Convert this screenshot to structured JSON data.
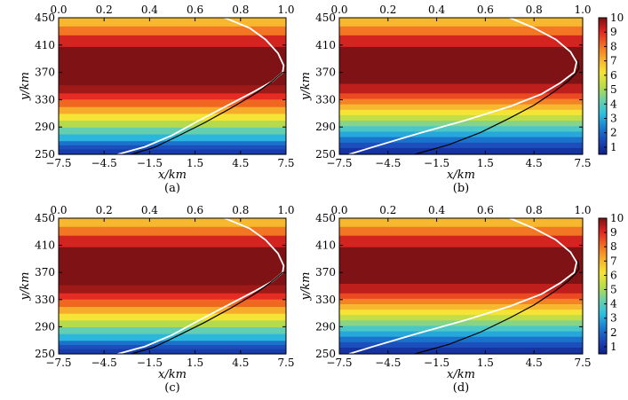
{
  "chart_data": [
    {
      "type": "heatmap",
      "panel_label": "(a)",
      "xlabel": "x/km",
      "ylabel": "y/km",
      "xlim": [
        -7.5,
        7.5
      ],
      "ylim": [
        250,
        450
      ],
      "x_ticks": [
        "−7.5",
        "−4.5",
        "−1.5",
        "1.5",
        "4.5",
        "7.5"
      ],
      "y_ticks": [
        "250",
        "290",
        "330",
        "370",
        "410",
        "450"
      ],
      "top_axis": {
        "lim": [
          0,
          1.0
        ],
        "ticks": [
          "0.0",
          "0.2",
          "0.4",
          "0.6",
          "0.8",
          "1.0"
        ]
      },
      "bands": [
        [
          250,
          258,
          1.2
        ],
        [
          258,
          264,
          1.6
        ],
        [
          264,
          270,
          2.2
        ],
        [
          270,
          280,
          3.2
        ],
        [
          280,
          290,
          4.2
        ],
        [
          290,
          300,
          5.2
        ],
        [
          300,
          310,
          6.2
        ],
        [
          310,
          320,
          7.2
        ],
        [
          320,
          331,
          8.2
        ],
        [
          331,
          340,
          9.0
        ],
        [
          340,
          352,
          9.7
        ],
        [
          352,
          408,
          10
        ],
        [
          408,
          425,
          9.2
        ],
        [
          425,
          438,
          8.0
        ],
        [
          438,
          450,
          7.0
        ]
      ],
      "curves": [
        {
          "color": "#ffffff",
          "points": [
            [
              0.26,
              250
            ],
            [
              0.38,
              261
            ],
            [
              0.5,
              278
            ],
            [
              0.62,
              300
            ],
            [
              0.74,
              321
            ],
            [
              0.86,
              342
            ],
            [
              0.94,
              357
            ],
            [
              0.985,
              370
            ],
            [
              0.99,
              380
            ],
            [
              0.965,
              398
            ],
            [
              0.91,
              418
            ],
            [
              0.84,
              435
            ],
            [
              0.73,
              450
            ]
          ]
        },
        {
          "color": "#000000",
          "points": [
            [
              0.32,
              250
            ],
            [
              0.42,
              260
            ],
            [
              0.52,
              276
            ],
            [
              0.64,
              296
            ],
            [
              0.76,
              318
            ],
            [
              0.87,
              340
            ],
            [
              0.94,
              357
            ],
            [
              0.985,
              370
            ]
          ]
        }
      ]
    },
    {
      "type": "heatmap",
      "panel_label": "(b)",
      "xlabel": "x/km",
      "ylabel": "y/km",
      "xlim": [
        -7.5,
        7.5
      ],
      "ylim": [
        250,
        450
      ],
      "x_ticks": [
        "−7.5",
        "−4.5",
        "−1.5",
        "1.5",
        "4.5",
        "7.5"
      ],
      "y_ticks": [
        "250",
        "290",
        "330",
        "370",
        "410",
        "450"
      ],
      "top_axis": {
        "lim": [
          0,
          1.0
        ],
        "ticks": [
          "0.0",
          "0.2",
          "0.4",
          "0.6",
          "0.8",
          "1.0"
        ]
      },
      "bands": [
        [
          250,
          260,
          1.0
        ],
        [
          260,
          268,
          1.6
        ],
        [
          268,
          276,
          2.2
        ],
        [
          276,
          284,
          3.0
        ],
        [
          284,
          292,
          3.8
        ],
        [
          292,
          300,
          4.6
        ],
        [
          300,
          308,
          5.4
        ],
        [
          308,
          316,
          6.2
        ],
        [
          316,
          324,
          7.0
        ],
        [
          324,
          332,
          7.8
        ],
        [
          332,
          340,
          8.6
        ],
        [
          340,
          354,
          9.4
        ],
        [
          354,
          408,
          10
        ],
        [
          408,
          425,
          9.2
        ],
        [
          425,
          438,
          8.0
        ],
        [
          438,
          450,
          7.0
        ]
      ],
      "colorbar": {
        "min": 0.5,
        "max": 10,
        "ticks": [
          "1",
          "2",
          "3",
          "4",
          "5",
          "6",
          "7",
          "8",
          "9",
          "10"
        ]
      },
      "curves": [
        {
          "color": "#ffffff",
          "points": [
            [
              0.04,
              250
            ],
            [
              0.15,
              262
            ],
            [
              0.32,
              280
            ],
            [
              0.52,
              300
            ],
            [
              0.7,
              320
            ],
            [
              0.83,
              338
            ],
            [
              0.91,
              355
            ],
            [
              0.965,
              370
            ],
            [
              0.975,
              385
            ],
            [
              0.95,
              400
            ],
            [
              0.89,
              418
            ],
            [
              0.8,
              435
            ],
            [
              0.7,
              450
            ]
          ]
        },
        {
          "color": "#000000",
          "points": [
            [
              0.31,
              250
            ],
            [
              0.45,
              264
            ],
            [
              0.58,
              282
            ],
            [
              0.7,
              303
            ],
            [
              0.8,
              322
            ],
            [
              0.88,
              341
            ],
            [
              0.94,
              357
            ],
            [
              0.97,
              368
            ],
            [
              0.985,
              376
            ],
            [
              0.98,
              388
            ]
          ]
        }
      ]
    },
    {
      "type": "heatmap",
      "panel_label": "(c)",
      "xlabel": "x/km",
      "ylabel": "y/km",
      "xlim": [
        -7.5,
        7.5
      ],
      "ylim": [
        250,
        450
      ],
      "x_ticks": [
        "−7.5",
        "−4.5",
        "−1.5",
        "1.5",
        "4.5",
        "7.5"
      ],
      "y_ticks": [
        "250",
        "290",
        "330",
        "370",
        "410",
        "450"
      ],
      "top_axis": {
        "lim": [
          0,
          1.0
        ],
        "ticks": [
          "0.0",
          "0.2",
          "0.4",
          "0.6",
          "0.8",
          "1.0"
        ]
      },
      "bands": [
        [
          250,
          258,
          1.2
        ],
        [
          258,
          264,
          1.6
        ],
        [
          264,
          270,
          2.2
        ],
        [
          270,
          280,
          3.2
        ],
        [
          280,
          290,
          4.2
        ],
        [
          290,
          300,
          5.2
        ],
        [
          300,
          310,
          6.2
        ],
        [
          310,
          320,
          7.2
        ],
        [
          320,
          331,
          8.2
        ],
        [
          331,
          340,
          9.0
        ],
        [
          340,
          352,
          9.7
        ],
        [
          352,
          408,
          10
        ],
        [
          408,
          425,
          9.2
        ],
        [
          425,
          438,
          8.0
        ],
        [
          438,
          450,
          7.0
        ]
      ],
      "curves": [
        {
          "color": "#ffffff",
          "points": [
            [
              0.26,
              250
            ],
            [
              0.38,
              261
            ],
            [
              0.5,
              278
            ],
            [
              0.62,
              300
            ],
            [
              0.74,
              321
            ],
            [
              0.86,
              342
            ],
            [
              0.94,
              357
            ],
            [
              0.985,
              370
            ],
            [
              0.99,
              380
            ],
            [
              0.965,
              398
            ],
            [
              0.91,
              418
            ],
            [
              0.84,
              435
            ],
            [
              0.73,
              450
            ]
          ]
        },
        {
          "color": "#000000",
          "points": [
            [
              0.32,
              250
            ],
            [
              0.42,
              260
            ],
            [
              0.52,
              276
            ],
            [
              0.64,
              296
            ],
            [
              0.76,
              318
            ],
            [
              0.87,
              340
            ],
            [
              0.94,
              357
            ],
            [
              0.985,
              370
            ]
          ]
        }
      ]
    },
    {
      "type": "heatmap",
      "panel_label": "(d)",
      "xlabel": "x/km",
      "ylabel": "y/km",
      "xlim": [
        -7.5,
        7.5
      ],
      "ylim": [
        250,
        450
      ],
      "x_ticks": [
        "−7.5",
        "−4.5",
        "−1.5",
        "1.5",
        "4.5",
        "7.5"
      ],
      "y_ticks": [
        "250",
        "290",
        "330",
        "370",
        "410",
        "450"
      ],
      "top_axis": {
        "lim": [
          0,
          1.0
        ],
        "ticks": [
          "0.0",
          "0.2",
          "0.4",
          "0.6",
          "0.8",
          "1.0"
        ]
      },
      "bands": [
        [
          250,
          260,
          1.0
        ],
        [
          260,
          268,
          1.6
        ],
        [
          268,
          276,
          2.2
        ],
        [
          276,
          284,
          3.0
        ],
        [
          284,
          292,
          3.8
        ],
        [
          292,
          300,
          4.6
        ],
        [
          300,
          308,
          5.4
        ],
        [
          308,
          316,
          6.2
        ],
        [
          316,
          324,
          7.0
        ],
        [
          324,
          332,
          7.8
        ],
        [
          332,
          340,
          8.6
        ],
        [
          340,
          354,
          9.4
        ],
        [
          354,
          408,
          10
        ],
        [
          408,
          425,
          9.2
        ],
        [
          425,
          438,
          8.0
        ],
        [
          438,
          450,
          7.0
        ]
      ],
      "colorbar": {
        "min": 0.5,
        "max": 10,
        "ticks": [
          "1",
          "2",
          "3",
          "4",
          "5",
          "6",
          "7",
          "8",
          "9",
          "10"
        ]
      },
      "curves": [
        {
          "color": "#ffffff",
          "points": [
            [
              0.04,
              250
            ],
            [
              0.15,
              262
            ],
            [
              0.32,
              280
            ],
            [
              0.52,
              300
            ],
            [
              0.7,
              320
            ],
            [
              0.83,
              338
            ],
            [
              0.91,
              355
            ],
            [
              0.965,
              370
            ],
            [
              0.975,
              385
            ],
            [
              0.95,
              400
            ],
            [
              0.89,
              418
            ],
            [
              0.8,
              435
            ],
            [
              0.7,
              450
            ]
          ]
        },
        {
          "color": "#000000",
          "points": [
            [
              0.31,
              250
            ],
            [
              0.45,
              264
            ],
            [
              0.58,
              282
            ],
            [
              0.7,
              303
            ],
            [
              0.8,
              322
            ],
            [
              0.88,
              341
            ],
            [
              0.94,
              357
            ],
            [
              0.97,
              368
            ],
            [
              0.985,
              376
            ],
            [
              0.98,
              388
            ]
          ]
        }
      ]
    }
  ],
  "colormap": [
    "#0d1f87",
    "#1c46b8",
    "#1a7fd0",
    "#2ec0e0",
    "#6cd0a8",
    "#b8dc48",
    "#f5e436",
    "#f7ae2c",
    "#f16f22",
    "#e42722",
    "#7e1214"
  ]
}
